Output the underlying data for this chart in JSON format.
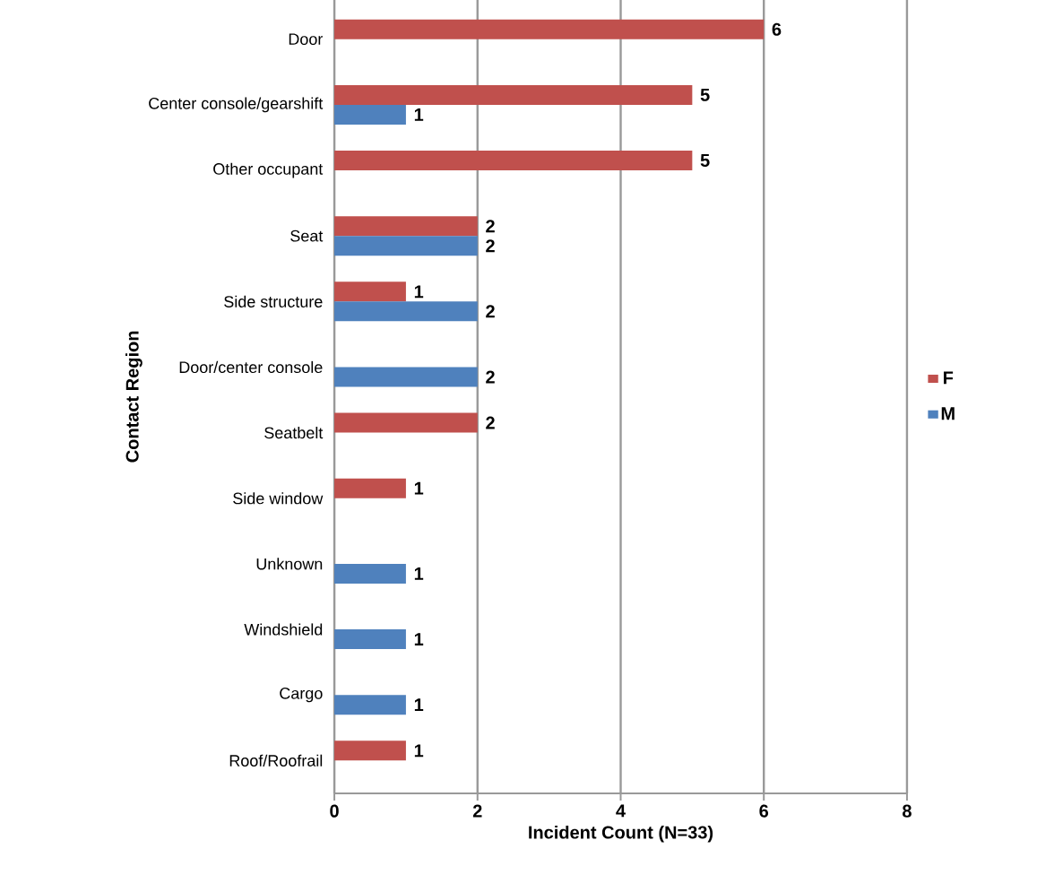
{
  "chart_data": {
    "type": "bar",
    "orientation": "horizontal",
    "xlabel": "Incident Count (N=33)",
    "ylabel": "Contact Region",
    "categories": [
      "Door",
      "Center console/gearshift",
      "Other occupant",
      "Seat",
      "Side structure",
      "Door/center console",
      "Seatbelt",
      "Side window",
      "Unknown",
      "Windshield",
      "Cargo",
      "Roof/Roofrail"
    ],
    "series": [
      {
        "name": "F",
        "color": "#c0504d",
        "values": [
          6,
          5,
          5,
          2,
          1,
          null,
          2,
          1,
          null,
          null,
          null,
          1
        ]
      },
      {
        "name": "M",
        "color": "#4f81bd",
        "values": [
          null,
          1,
          null,
          2,
          2,
          2,
          null,
          null,
          1,
          1,
          1,
          null
        ]
      }
    ],
    "xlim": [
      0,
      8
    ],
    "xticks": [
      0,
      2,
      4,
      6,
      8
    ],
    "grid": "x",
    "legend": "right",
    "data_labels": true
  }
}
